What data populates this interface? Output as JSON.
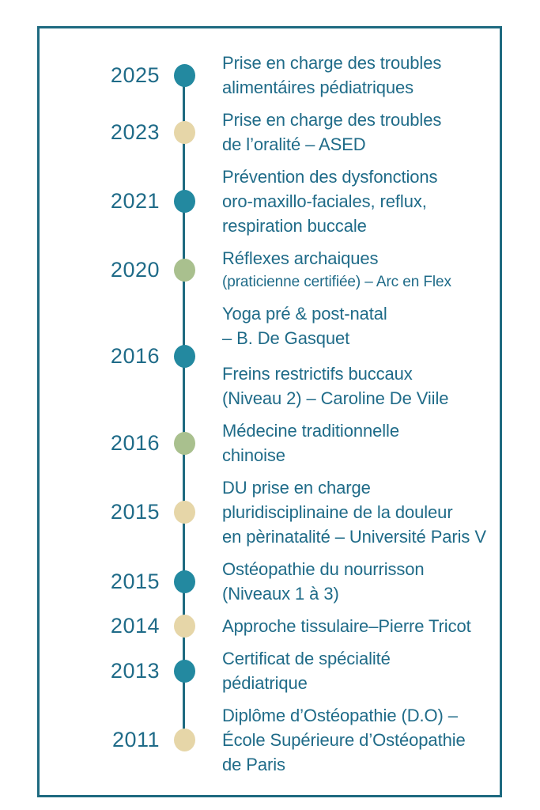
{
  "palette": {
    "background": "#ffffff",
    "border": "#1e6a80",
    "axis_line": "#1e6a80",
    "text": "#1f6b88",
    "dot_colors": {
      "teal": "#2389a0",
      "beige": "#e6d6a8",
      "green": "#a9c08e"
    }
  },
  "timeline": {
    "entries": [
      {
        "year": "2025",
        "dot": "teal",
        "blocks": [
          {
            "lines": [
              {
                "text": "Prise en charge des troubles"
              },
              {
                "text": "alimentáires pédiatriques"
              }
            ]
          }
        ]
      },
      {
        "year": "2023",
        "dot": "beige",
        "blocks": [
          {
            "lines": [
              {
                "text": "Prise en charge des troubles"
              },
              {
                "text": "de l’oralité – ASED"
              }
            ]
          }
        ]
      },
      {
        "year": "2021",
        "dot": "teal",
        "blocks": [
          {
            "lines": [
              {
                "text": "Prévention des dysfonctions"
              },
              {
                "text": "oro-maxillo-faciales, reflux,"
              },
              {
                "text": "respiration buccale"
              }
            ]
          }
        ]
      },
      {
        "year": "2020",
        "dot": "green",
        "blocks": [
          {
            "lines": [
              {
                "text": "Réflexes archaiques"
              },
              {
                "text": "(praticienne certifiée) – Arc en Flex",
                "small": true
              }
            ]
          }
        ]
      },
      {
        "year": "2016",
        "dot": "teal",
        "blocks": [
          {
            "lines": [
              {
                "text": "Yoga pré & post-natal"
              },
              {
                "text": "– B. De Gasquet"
              }
            ]
          },
          {
            "lines": [
              {
                "text": "Freins restrictifs buccaux"
              },
              {
                "text": "(Niveau 2) – Caroline  De  Viile"
              }
            ]
          }
        ]
      },
      {
        "year": "2016",
        "dot": "green",
        "blocks": [
          {
            "lines": [
              {
                "text": "Médecine traditionnelle"
              },
              {
                "text": "chinoise"
              }
            ]
          }
        ]
      },
      {
        "year": "2015",
        "dot": "beige",
        "blocks": [
          {
            "lines": [
              {
                "text": "DU prise en charge"
              },
              {
                "text": "pluridisciplinaine de la douleur"
              },
              {
                "text": "en pèrinatalité – Université Paris V"
              }
            ]
          }
        ]
      },
      {
        "year": "2015",
        "dot": "teal",
        "blocks": [
          {
            "lines": [
              {
                "text": "Ostéopathie du nourrisson"
              },
              {
                "text": "(Niveaux 1 à 3)"
              }
            ]
          }
        ]
      },
      {
        "year": "2014",
        "dot": "beige",
        "blocks": [
          {
            "lines": [
              {
                "text": "Approche tissulaire–Pierre Tricot"
              }
            ]
          }
        ]
      },
      {
        "year": "2013",
        "dot": "teal",
        "blocks": [
          {
            "lines": [
              {
                "text": "Certificat de spécialité"
              },
              {
                "text": "pédiatrique"
              }
            ]
          }
        ]
      },
      {
        "year": "2011",
        "dot": "beige",
        "blocks": [
          {
            "lines": [
              {
                "text": "Diplôme d’Ostéopathie (D.O) –"
              },
              {
                "text": "École Supérieure d’Ostéopathie"
              },
              {
                "text": "de Paris"
              }
            ]
          }
        ]
      }
    ]
  }
}
